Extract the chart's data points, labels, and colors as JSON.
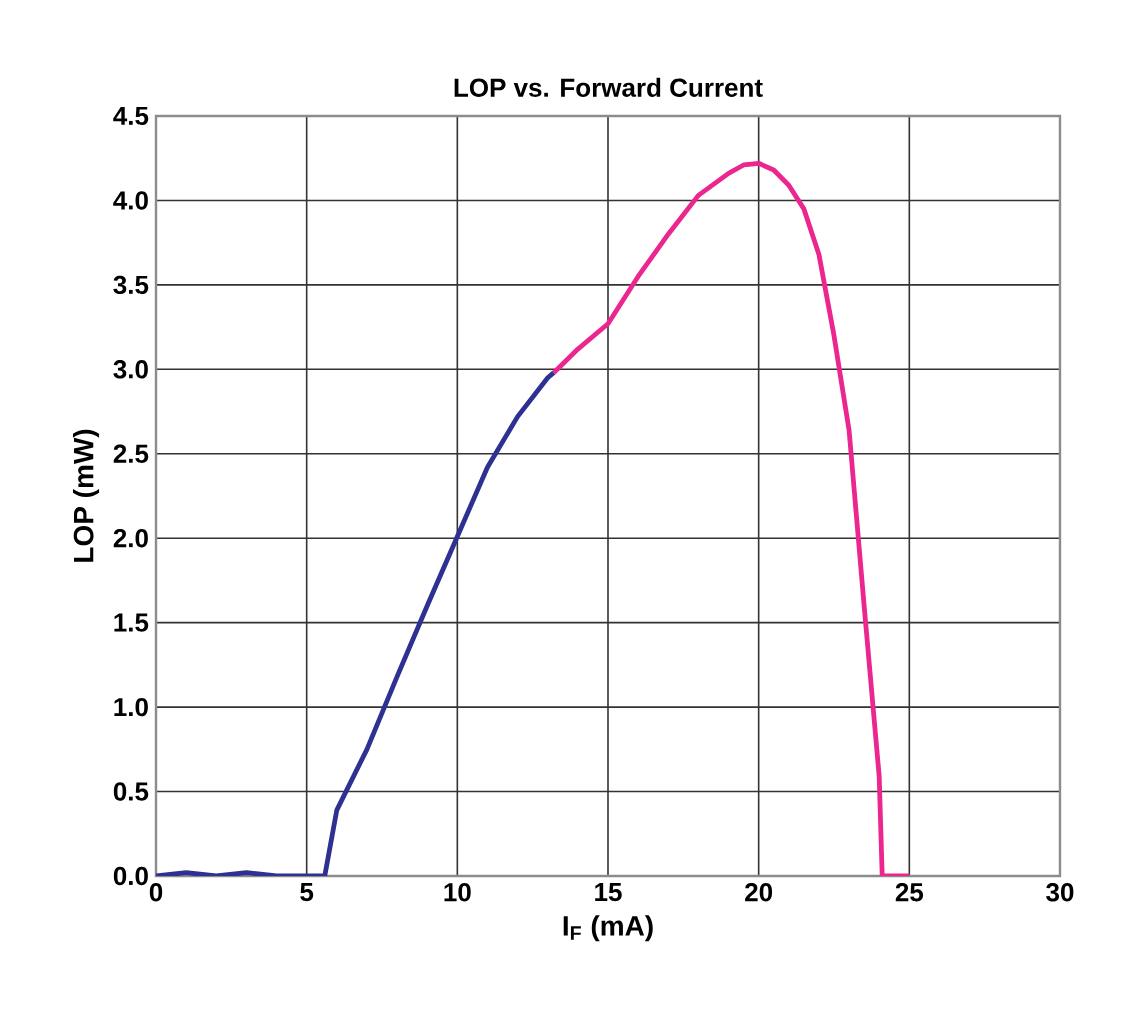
{
  "chart_data": {
    "type": "line",
    "title": "LOP vs. Forward Current",
    "xlabel": "I$_{F}$ (mA)",
    "ylabel": "LOP (mW)",
    "xlim": [
      0,
      30
    ],
    "xticks": [
      0,
      5,
      10,
      15,
      20,
      25,
      30
    ],
    "ylim": [
      0,
      4.5
    ],
    "yticks": [
      {
        "value": 0,
        "label": "0.0"
      },
      {
        "value": 0.5,
        "label": "0.5"
      },
      {
        "value": 1,
        "label": "1.0"
      },
      {
        "value": 1.5,
        "label": "1.5"
      },
      {
        "value": 2,
        "label": "2.0"
      },
      {
        "value": 2.5,
        "label": "2.5"
      },
      {
        "value": 3,
        "label": "3.0"
      },
      {
        "value": 3.5,
        "label": "3.5"
      },
      {
        "value": 4,
        "label": "4.0"
      },
      {
        "value": 4.5,
        "label": "4.5"
      }
    ],
    "grid": true,
    "marker": "none",
    "line_style": "solid",
    "series": [
      {
        "color": "#2e3192",
        "x": [
          0,
          1,
          2,
          3,
          4,
          5,
          5.6,
          6,
          7,
          8,
          9,
          10,
          11,
          12,
          13,
          13.2
        ],
        "values": [
          0,
          0.02,
          0,
          0.02,
          0,
          0,
          0,
          0.39,
          0.75,
          1.18,
          1.6,
          2.01,
          2.42,
          2.72,
          2.95,
          2.98
        ]
      },
      {
        "color": "#ec268f",
        "x": [
          13.2,
          14,
          15,
          16,
          17,
          18,
          19,
          19.5,
          20,
          20.5,
          21,
          21.5,
          22,
          22.5,
          23,
          23.5,
          24,
          24.1,
          25
        ],
        "values": [
          2.98,
          3.12,
          3.27,
          3.55,
          3.8,
          4.03,
          4.16,
          4.21,
          4.22,
          4.18,
          4.09,
          3.95,
          3.68,
          3.2,
          2.64,
          1.6,
          0.59,
          0,
          0
        ]
      }
    ]
  }
}
